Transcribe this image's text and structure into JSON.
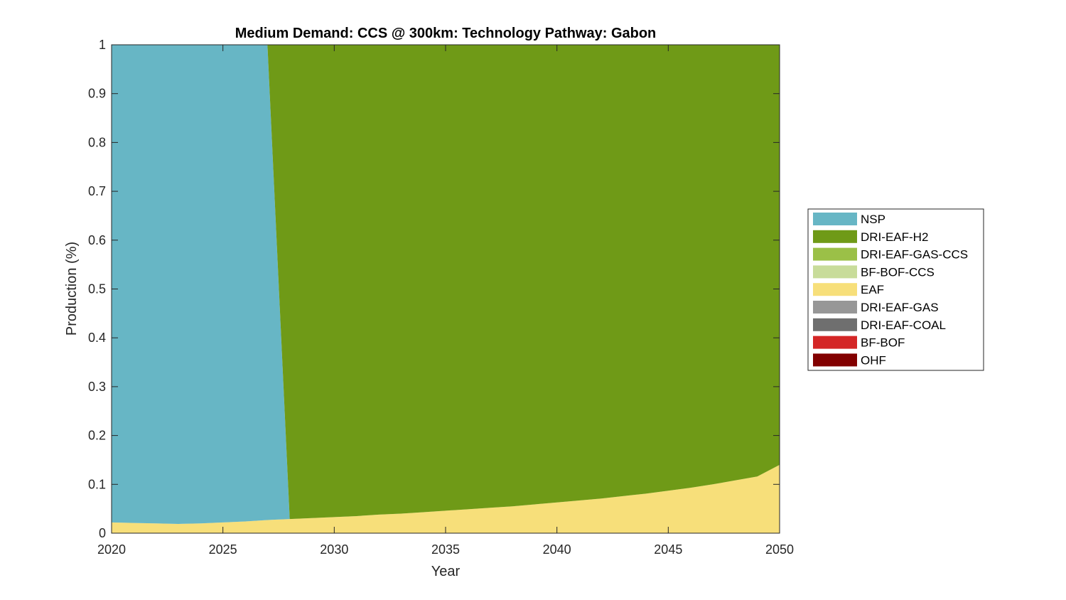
{
  "chart_data": {
    "type": "area",
    "stacked": true,
    "title": "Medium Demand: CCS @ 300km: Technology Pathway: Gabon",
    "xlabel": "Year",
    "ylabel": "Production (%)",
    "xlim": [
      2020,
      2050
    ],
    "ylim": [
      0,
      1
    ],
    "xticks": [
      "2020",
      "2025",
      "2030",
      "2035",
      "2040",
      "2045",
      "2050"
    ],
    "yticks": [
      "0",
      "0.1",
      "0.2",
      "0.3",
      "0.4",
      "0.5",
      "0.6",
      "0.7",
      "0.8",
      "0.9",
      "1"
    ],
    "grid": false,
    "legend_position": "right",
    "x": [
      2020,
      2021,
      2022,
      2023,
      2024,
      2025,
      2026,
      2027,
      2028,
      2029,
      2030,
      2031,
      2032,
      2033,
      2034,
      2035,
      2036,
      2037,
      2038,
      2039,
      2040,
      2041,
      2042,
      2043,
      2044,
      2045,
      2046,
      2047,
      2048,
      2049,
      2050
    ],
    "series": [
      {
        "name": "EAF",
        "color": "#F7DF7A",
        "values": [
          0.022,
          0.021,
          0.02,
          0.019,
          0.02,
          0.022,
          0.024,
          0.027,
          0.029,
          0.031,
          0.033,
          0.035,
          0.038,
          0.04,
          0.043,
          0.046,
          0.049,
          0.052,
          0.055,
          0.059,
          0.063,
          0.067,
          0.071,
          0.076,
          0.081,
          0.087,
          0.093,
          0.1,
          0.108,
          0.116,
          0.14
        ]
      },
      {
        "name": "NSP",
        "color": "#67B6C5",
        "values": [
          0.978,
          0.979,
          0.98,
          0.981,
          0.98,
          0.978,
          0.976,
          0.973,
          0,
          0,
          0,
          0,
          0,
          0,
          0,
          0,
          0,
          0,
          0,
          0,
          0,
          0,
          0,
          0,
          0,
          0,
          0,
          0,
          0,
          0,
          0
        ]
      },
      {
        "name": "DRI-EAF-H2",
        "color": "#6F9A17",
        "values": [
          0,
          0,
          0,
          0,
          0,
          0,
          0,
          0,
          0.971,
          0.969,
          0.967,
          0.965,
          0.962,
          0.96,
          0.957,
          0.954,
          0.951,
          0.948,
          0.945,
          0.941,
          0.937,
          0.933,
          0.929,
          0.924,
          0.919,
          0.913,
          0.907,
          0.9,
          0.892,
          0.884,
          0.86
        ]
      }
    ],
    "legend": [
      {
        "label": "NSP",
        "color": "#67B6C5"
      },
      {
        "label": "DRI-EAF-H2",
        "color": "#6F9A17"
      },
      {
        "label": "DRI-EAF-GAS-CCS",
        "color": "#9BC047"
      },
      {
        "label": "BF-BOF-CCS",
        "color": "#C8DC9A"
      },
      {
        "label": "EAF",
        "color": "#F7DF7A"
      },
      {
        "label": "DRI-EAF-GAS",
        "color": "#979797"
      },
      {
        "label": "DRI-EAF-COAL",
        "color": "#6F6F6F"
      },
      {
        "label": "BF-BOF",
        "color": "#D42626"
      },
      {
        "label": "OHF",
        "color": "#820000"
      }
    ]
  }
}
